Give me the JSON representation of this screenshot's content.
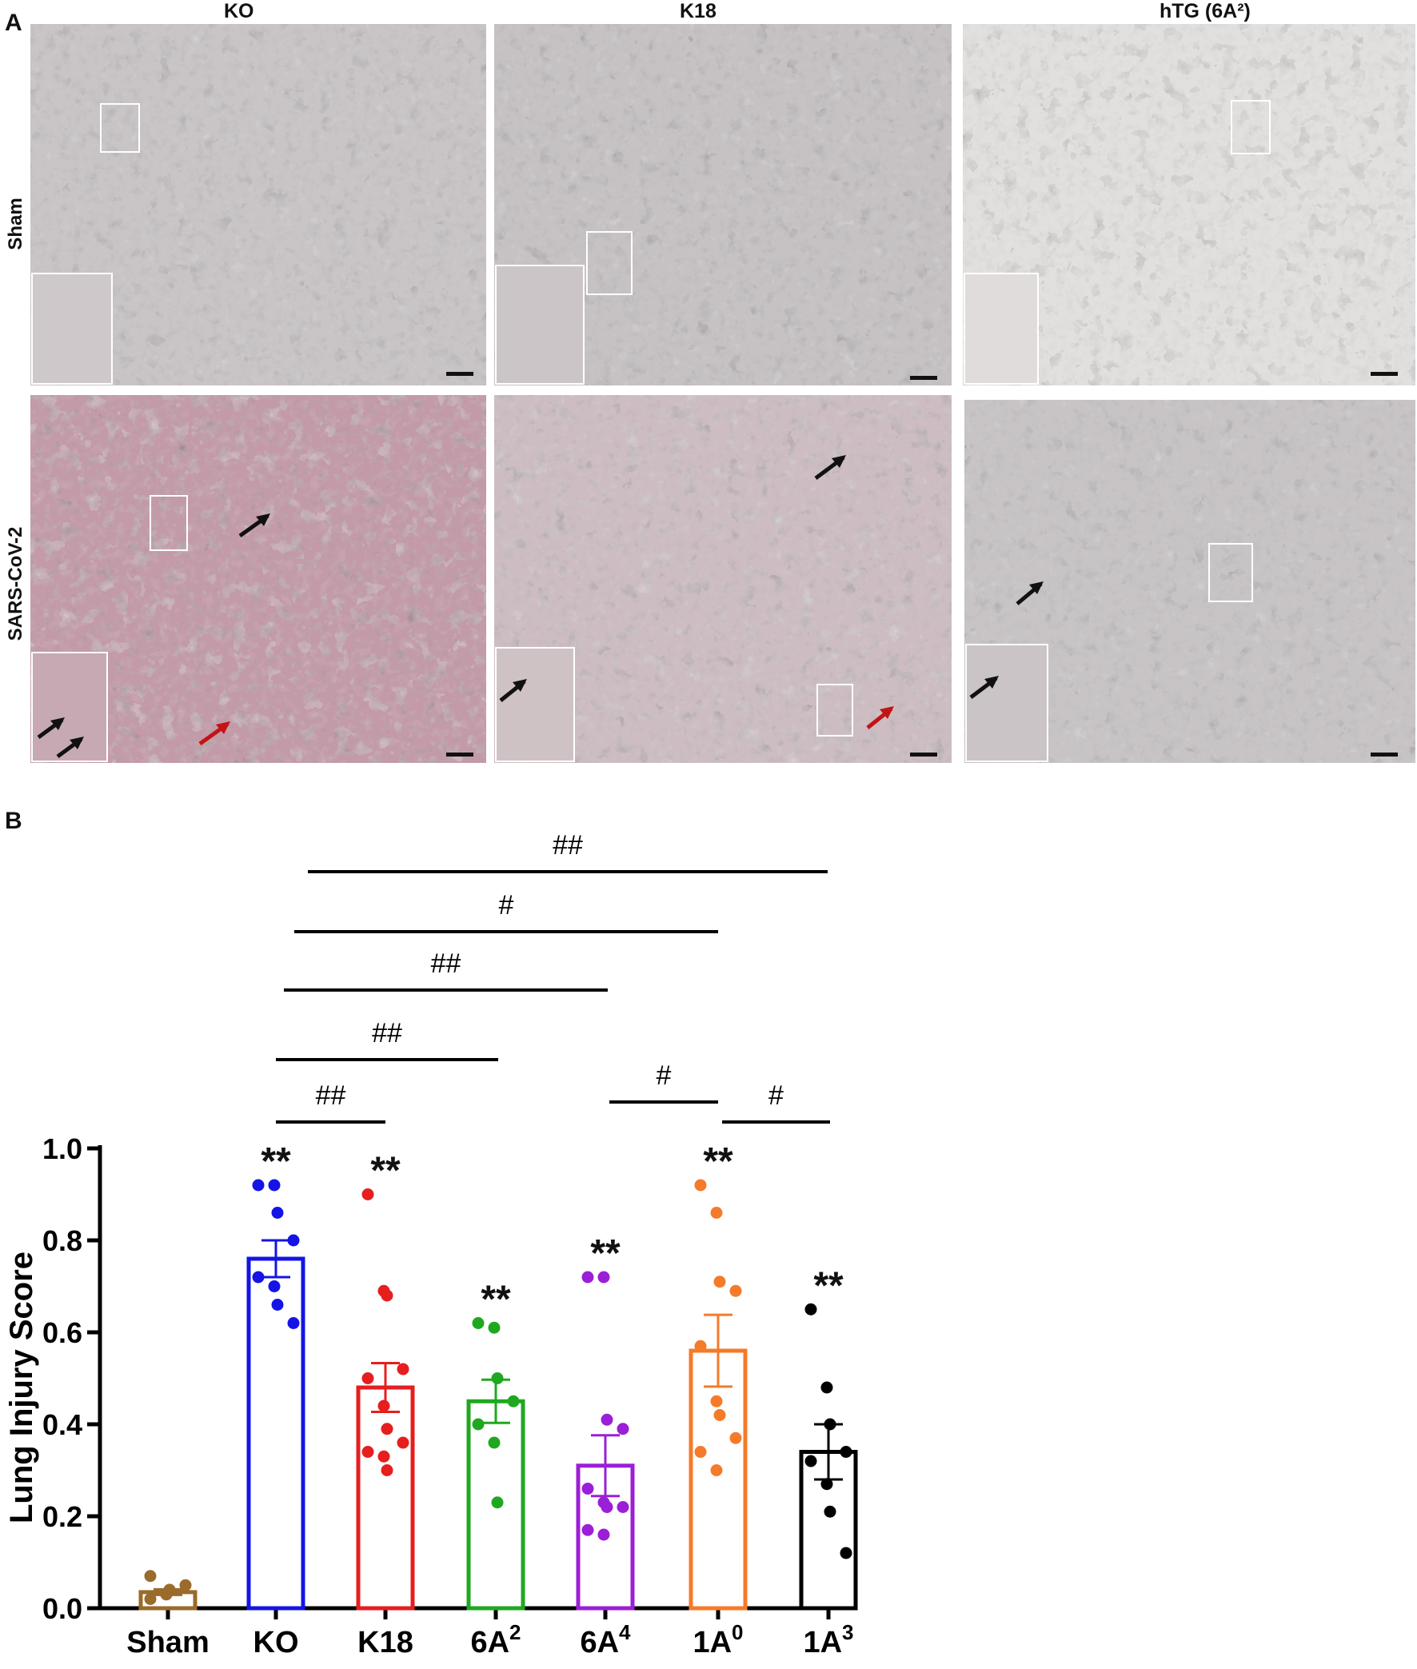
{
  "panel_a": {
    "letter": "A",
    "columns": [
      "KO",
      "K18",
      "hTG (6A²)"
    ],
    "rows": [
      "Sham",
      "SARS-CoV-2"
    ]
  },
  "panel_b": {
    "letter": "B"
  },
  "chart_data": {
    "type": "bar",
    "title": "",
    "xlabel": "",
    "ylabel": "Lung Injury Score",
    "ylim": [
      0,
      1.0
    ],
    "yticks": [
      "0.0",
      "0.2",
      "0.4",
      "0.6",
      "0.8",
      "1.0"
    ],
    "error_bars": "SEM",
    "categories": [
      {
        "base": "Sham",
        "sup": ""
      },
      {
        "base": "KO",
        "sup": ""
      },
      {
        "base": "K18",
        "sup": ""
      },
      {
        "base": "6A",
        "sup": "2"
      },
      {
        "base": "6A",
        "sup": "4"
      },
      {
        "base": "1A",
        "sup": "0"
      },
      {
        "base": "1A",
        "sup": "3"
      }
    ],
    "colors": [
      "#9a6b2a",
      "#1414e6",
      "#e61e1e",
      "#1fa81f",
      "#9b1fd6",
      "#f57a2a",
      "#000000"
    ],
    "values": [
      0.035,
      0.76,
      0.48,
      0.45,
      0.31,
      0.56,
      0.34
    ],
    "sem": [
      0.006,
      0.04,
      0.053,
      0.047,
      0.066,
      0.078,
      0.06
    ],
    "points": [
      [
        0.02,
        0.03,
        0.04,
        0.05,
        0.07,
        0.03,
        0.04
      ],
      [
        0.92,
        0.92,
        0.86,
        0.8,
        0.72,
        0.7,
        0.66,
        0.62
      ],
      [
        0.9,
        0.69,
        0.68,
        0.52,
        0.5,
        0.44,
        0.39,
        0.36,
        0.34,
        0.33,
        0.3
      ],
      [
        0.62,
        0.61,
        0.5,
        0.45,
        0.4,
        0.36,
        0.23
      ],
      [
        0.72,
        0.72,
        0.41,
        0.39,
        0.26,
        0.23,
        0.22,
        0.22,
        0.17,
        0.16
      ],
      [
        0.92,
        0.86,
        0.71,
        0.69,
        0.57,
        0.45,
        0.42,
        0.37,
        0.34,
        0.3
      ],
      [
        0.65,
        0.48,
        0.4,
        0.34,
        0.32,
        0.27,
        0.21,
        0.12
      ]
    ],
    "significance_marks": [
      "",
      "**",
      "**",
      "**",
      "**",
      "**",
      "**"
    ],
    "comparisons": [
      {
        "from": 1,
        "to": 6,
        "label": "##"
      },
      {
        "from": 1,
        "to": 5,
        "label": "#"
      },
      {
        "from": 1,
        "to": 4,
        "label": "##"
      },
      {
        "from": 1,
        "to": 3,
        "label": "##"
      },
      {
        "from": 1,
        "to": 2,
        "label": "##"
      },
      {
        "from": 4,
        "to": 5,
        "label": "#"
      },
      {
        "from": 5,
        "to": 6,
        "label": "#"
      }
    ]
  }
}
